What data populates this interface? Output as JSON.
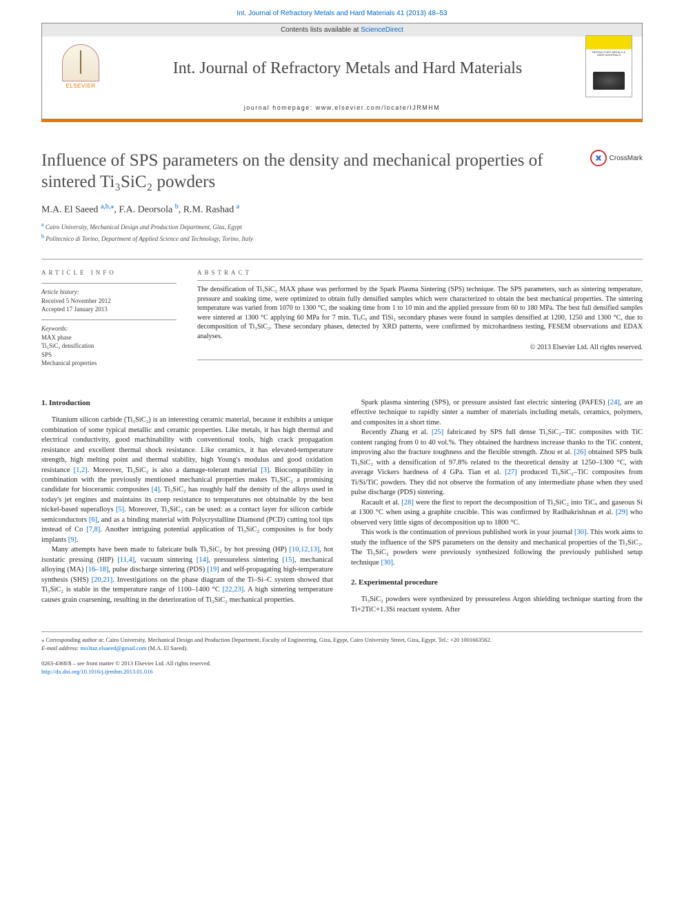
{
  "topLink": "Int. Journal of Refractory Metals and Hard Materials 41 (2013) 48–53",
  "header": {
    "contentsLine": "Contents lists available at ",
    "scienceDirect": "ScienceDirect",
    "journalTitle": "Int. Journal of Refractory Metals and Hard Materials",
    "homepage": "journal homepage: www.elsevier.com/locate/IJRMHM",
    "elsevier": "ELSEVIER",
    "coverTitle": "REFRACTORY METALS & HARD MATERIALS"
  },
  "crossmark": "CrossMark",
  "title": "Influence of SPS parameters on the density and mechanical properties of sintered Ti₃SiC₂ powders",
  "authors": [
    {
      "name": "M.A. El Saeed ",
      "aff": "a,b,",
      "corr": "⁎"
    },
    {
      "name": ", F.A. Deorsola ",
      "aff": "b"
    },
    {
      "name": ", R.M. Rashad ",
      "aff": "a"
    }
  ],
  "affiliations": [
    {
      "label": "a",
      "text": " Cairo University, Mechanical Design and Production Department, Giza, Egypt"
    },
    {
      "label": "b",
      "text": " Politecnico di Torino, Department of Applied Science and Technology, Torino, Italy"
    }
  ],
  "articleInfo": {
    "heading": "article info",
    "historyHead": "Article history:",
    "received": "Received 5 November 2012",
    "accepted": "Accepted 17 January 2013",
    "keywordsHead": "Keywords:",
    "keywords": [
      "MAX phase",
      "Ti₃SiC₂ densification",
      "SPS",
      "Mechanical properties"
    ]
  },
  "abstract": {
    "heading": "abstract",
    "text": "The densification of Ti₃SiC₂ MAX phase was performed by the Spark Plasma Sintering (SPS) technique. The SPS parameters, such as sintering temperature, pressure and soaking time, were optimized to obtain fully densified samples which were characterized to obtain the best mechanical properties. The sintering temperature was varied from 1070 to 1300 °C, the soaking time from 1 to 10 min and the applied pressure from 60 to 180 MPa. The best full densified samples were sintered at 1300 °C applying 60 MPa for 7 min. TiₓCᵧ and TiSi₂ secondary phases were found in samples densified at 1200, 1250 and 1300 °C, due to decomposition of Ti₃SiC₂. These secondary phases, detected by XRD patterns, were confirmed by microhardness testing, FESEM observations and EDAX analyses.",
    "copyright": "© 2013 Elsevier Ltd. All rights reserved."
  },
  "sections": {
    "s1": {
      "heading": "1. Introduction",
      "paragraphs": [
        "Titanium silicon carbide (Ti₃SiC₂) is an interesting ceramic material, because it exhibits a unique combination of some typical metallic and ceramic properties. Like metals, it has high thermal and electrical conductivity, good machinability with conventional tools, high crack propagation resistance and excellent thermal shock resistance. Like ceramics, it has elevated-temperature strength, high melting point and thermal stability, high Young's modulus and good oxidation resistance [1,2]. Moreover, Ti₃SiC₂ is also a damage-tolerant material [3]. Biocompatibility in combination with the previously mentioned mechanical properties makes Ti₃SiC₂ a promising candidate for bioceramic composites [4]. Ti₃SiC₂ has roughly half the density of the alloys used in today's jet engines and maintains its creep resistance to temperatures not obtainable by the best nickel-based superalloys [5]. Moreover, Ti₃SiC₂ can be used: as a contact layer for silicon carbide semiconductors [6], and as a binding material with Polycrystalline Diamond (PCD) cutting tool tips instead of Co [7,8]. Another intriguing potential application of Ti₃SiC₂ composites is for body implants [9].",
        "Many attempts have been made to fabricate bulk Ti₃SiC₂ by hot pressing (HP) [10,12,13], hot isostatic pressing (HIP) [11,4], vacuum sintering [14], pressureless sintering [15], mechanical alloying (MA) [16–18], pulse discharge sintering (PDS) [19] and self-propagating high-temperature synthesis (SHS) [20,21]. Investigations on the phase diagram of the Ti–Si–C system showed that Ti₃SiC₂ is stable in the temperature range of 1100–1400 °C [22,23]. A high sintering temperature causes grain coarsening, resulting in the deterioration of Ti₃SiC₂ mechanical properties.",
        "Spark plasma sintering (SPS), or pressure assisted fast electric sintering (PAFES) [24], are an effective technique to rapidly sinter a number of materials including metals, ceramics, polymers, and composites in a short time.",
        "Recently Zhang et al. [25] fabricated by SPS full dense Ti₃SiC₂–TiC composites with TiC content ranging from 0 to 40 vol.%. They obtained the hardness increase thanks to the TiC content, improving also the fracture toughness and the flexible strength. Zhou et al. [26] obtained SPS bulk Ti₃SiC₂ with a densification of 97.8% related to the theoretical density at 1250–1300 °C, with average Vickers hardness of 4 GPa. Tian et al. [27] produced Ti₃SiC₂–TiC composites from Ti/Si/TiC powders. They did not observe the formation of any intermediate phase when they used pulse discharge (PDS) sintering.",
        "Racault et al. [28] were the first to report the decomposition of Ti₃SiC₂ into TiCₓ and gaseous Si at 1300 °C when using a graphite crucible. This was confirmed by Radhakrishnan et al. [29] who observed very little signs of decomposition up to 1800 °C.",
        "This work is the continuation of previous published work in your journal [30]. This work aims to study the influence of the SPS parameters on the density and mechanical properties of the Ti₃SiC₂. The Ti₃SiC₂ powders were previously synthesized following the previously published setup technique [30]."
      ]
    },
    "s2": {
      "heading": "2. Experimental procedure",
      "paragraphs": [
        "Ti₃SiC₂ powders were synthesized by pressureless Argon shielding technique starting from the Ti+2TiC+1.3Si reactant system. After"
      ]
    }
  },
  "footer": {
    "corrText": "⁎ Corresponding author at: Cairo University, Mechanical Design and Production Department, Faculty of Engineering, Giza, Egypt, Cairo University Street, Giza, Egypt. Tel.: +20 1001663562.",
    "emailLabel": "E-mail address: ",
    "email": "mo3taz.elsaeed@gmail.com",
    "emailOwner": " (M.A. El Saeed)."
  },
  "bottom": {
    "issn": "0263-4368/$ – see front matter © 2013 Elsevier Ltd. All rights reserved.",
    "doi": "http://dx.doi.org/10.1016/j.ijrmhm.2013.01.016"
  },
  "colors": {
    "link": "#0066cc",
    "orange": "#e67a00",
    "text": "#222222",
    "grayText": "#555555",
    "rule": "#999999"
  },
  "typography": {
    "bodyFont": "Georgia, Times New Roman, serif",
    "uiFont": "Arial, sans-serif",
    "titleSize": 25,
    "journalTitleSize": 24,
    "bodySize": 10.5,
    "abstractSize": 10,
    "footSize": 8.5
  },
  "citations": [
    "[1,2]",
    "[3]",
    "[4]",
    "[5]",
    "[6]",
    "[7,8]",
    "[9]",
    "[10,12,13]",
    "[11,4]",
    "[14]",
    "[15]",
    "[16–18]",
    "[19]",
    "[20,21]",
    "[22,23]",
    "[24]",
    "[25]",
    "[26]",
    "[27]",
    "[28]",
    "[29]",
    "[30]"
  ]
}
